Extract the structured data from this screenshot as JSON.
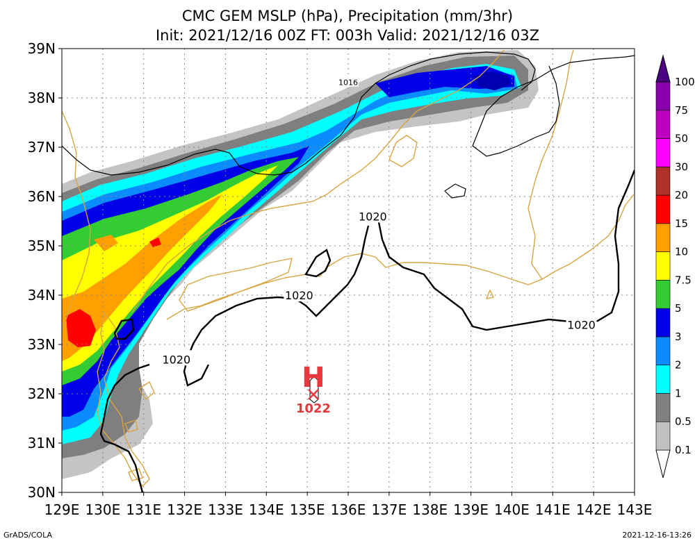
{
  "title": {
    "line1": "CMC GEM MSLP (hPa), Precipitation (mm/3hr)",
    "line2": "Init: 2021/12/16 00Z  FT: 003h  Valid: 2021/12/16 03Z"
  },
  "chart_data": {
    "type": "heatmap",
    "map": "lat-lon precipitation shading with MSLP isobars",
    "lon_range": [
      129,
      143
    ],
    "lat_range": [
      30,
      39
    ],
    "x_ticks": [
      "129E",
      "130E",
      "131E",
      "132E",
      "133E",
      "134E",
      "135E",
      "136E",
      "137E",
      "138E",
      "139E",
      "140E",
      "141E",
      "142E",
      "143E"
    ],
    "y_ticks": [
      "30N",
      "31N",
      "32N",
      "33N",
      "34N",
      "35N",
      "36N",
      "37N",
      "38N",
      "39N"
    ],
    "grid": true,
    "colorbar": {
      "position": "right",
      "levels": [
        "0.1",
        "0.5",
        "1",
        "2",
        "3",
        "5",
        "7.5",
        "10",
        "15",
        "20",
        "30",
        "50",
        "75",
        "100"
      ],
      "colors": [
        "#ffffff",
        "#c0c0c0",
        "#808080",
        "#00ffff",
        "#0a8cff",
        "#0000e6",
        "#33cc33",
        "#ffff00",
        "#ffa000",
        "#ff0000",
        "#b0302a",
        "#ff00ff",
        "#c000c0",
        "#8800aa",
        "#4b0082"
      ]
    },
    "precip_colors": {
      "0.1": "#c0c0c0",
      "0.5": "#808080",
      "1": "#00ffff",
      "2": "#0a8cff",
      "3": "#0000e6",
      "5": "#33cc33",
      "7.5": "#ffff00",
      "10": "#ffa000",
      "15": "#ff0000"
    },
    "isobar_labels": [
      {
        "text": "1016",
        "lon": 136.0,
        "lat": 38.3
      },
      {
        "text": "1020",
        "lon": 136.6,
        "lat": 35.6
      },
      {
        "text": "1020",
        "lon": 134.8,
        "lat": 34.0
      },
      {
        "text": "1020",
        "lon": 131.8,
        "lat": 32.7
      },
      {
        "text": "1020",
        "lon": 141.7,
        "lat": 33.4
      }
    ],
    "high_center": {
      "symbol": "H",
      "value": "1022",
      "lon": 135.2,
      "lat": 32.0,
      "color": "#e8383d"
    },
    "coast_color": "#d9a441"
  },
  "footer": {
    "left": "GrADS/COLA",
    "right": "2021-12-16-13:26"
  }
}
